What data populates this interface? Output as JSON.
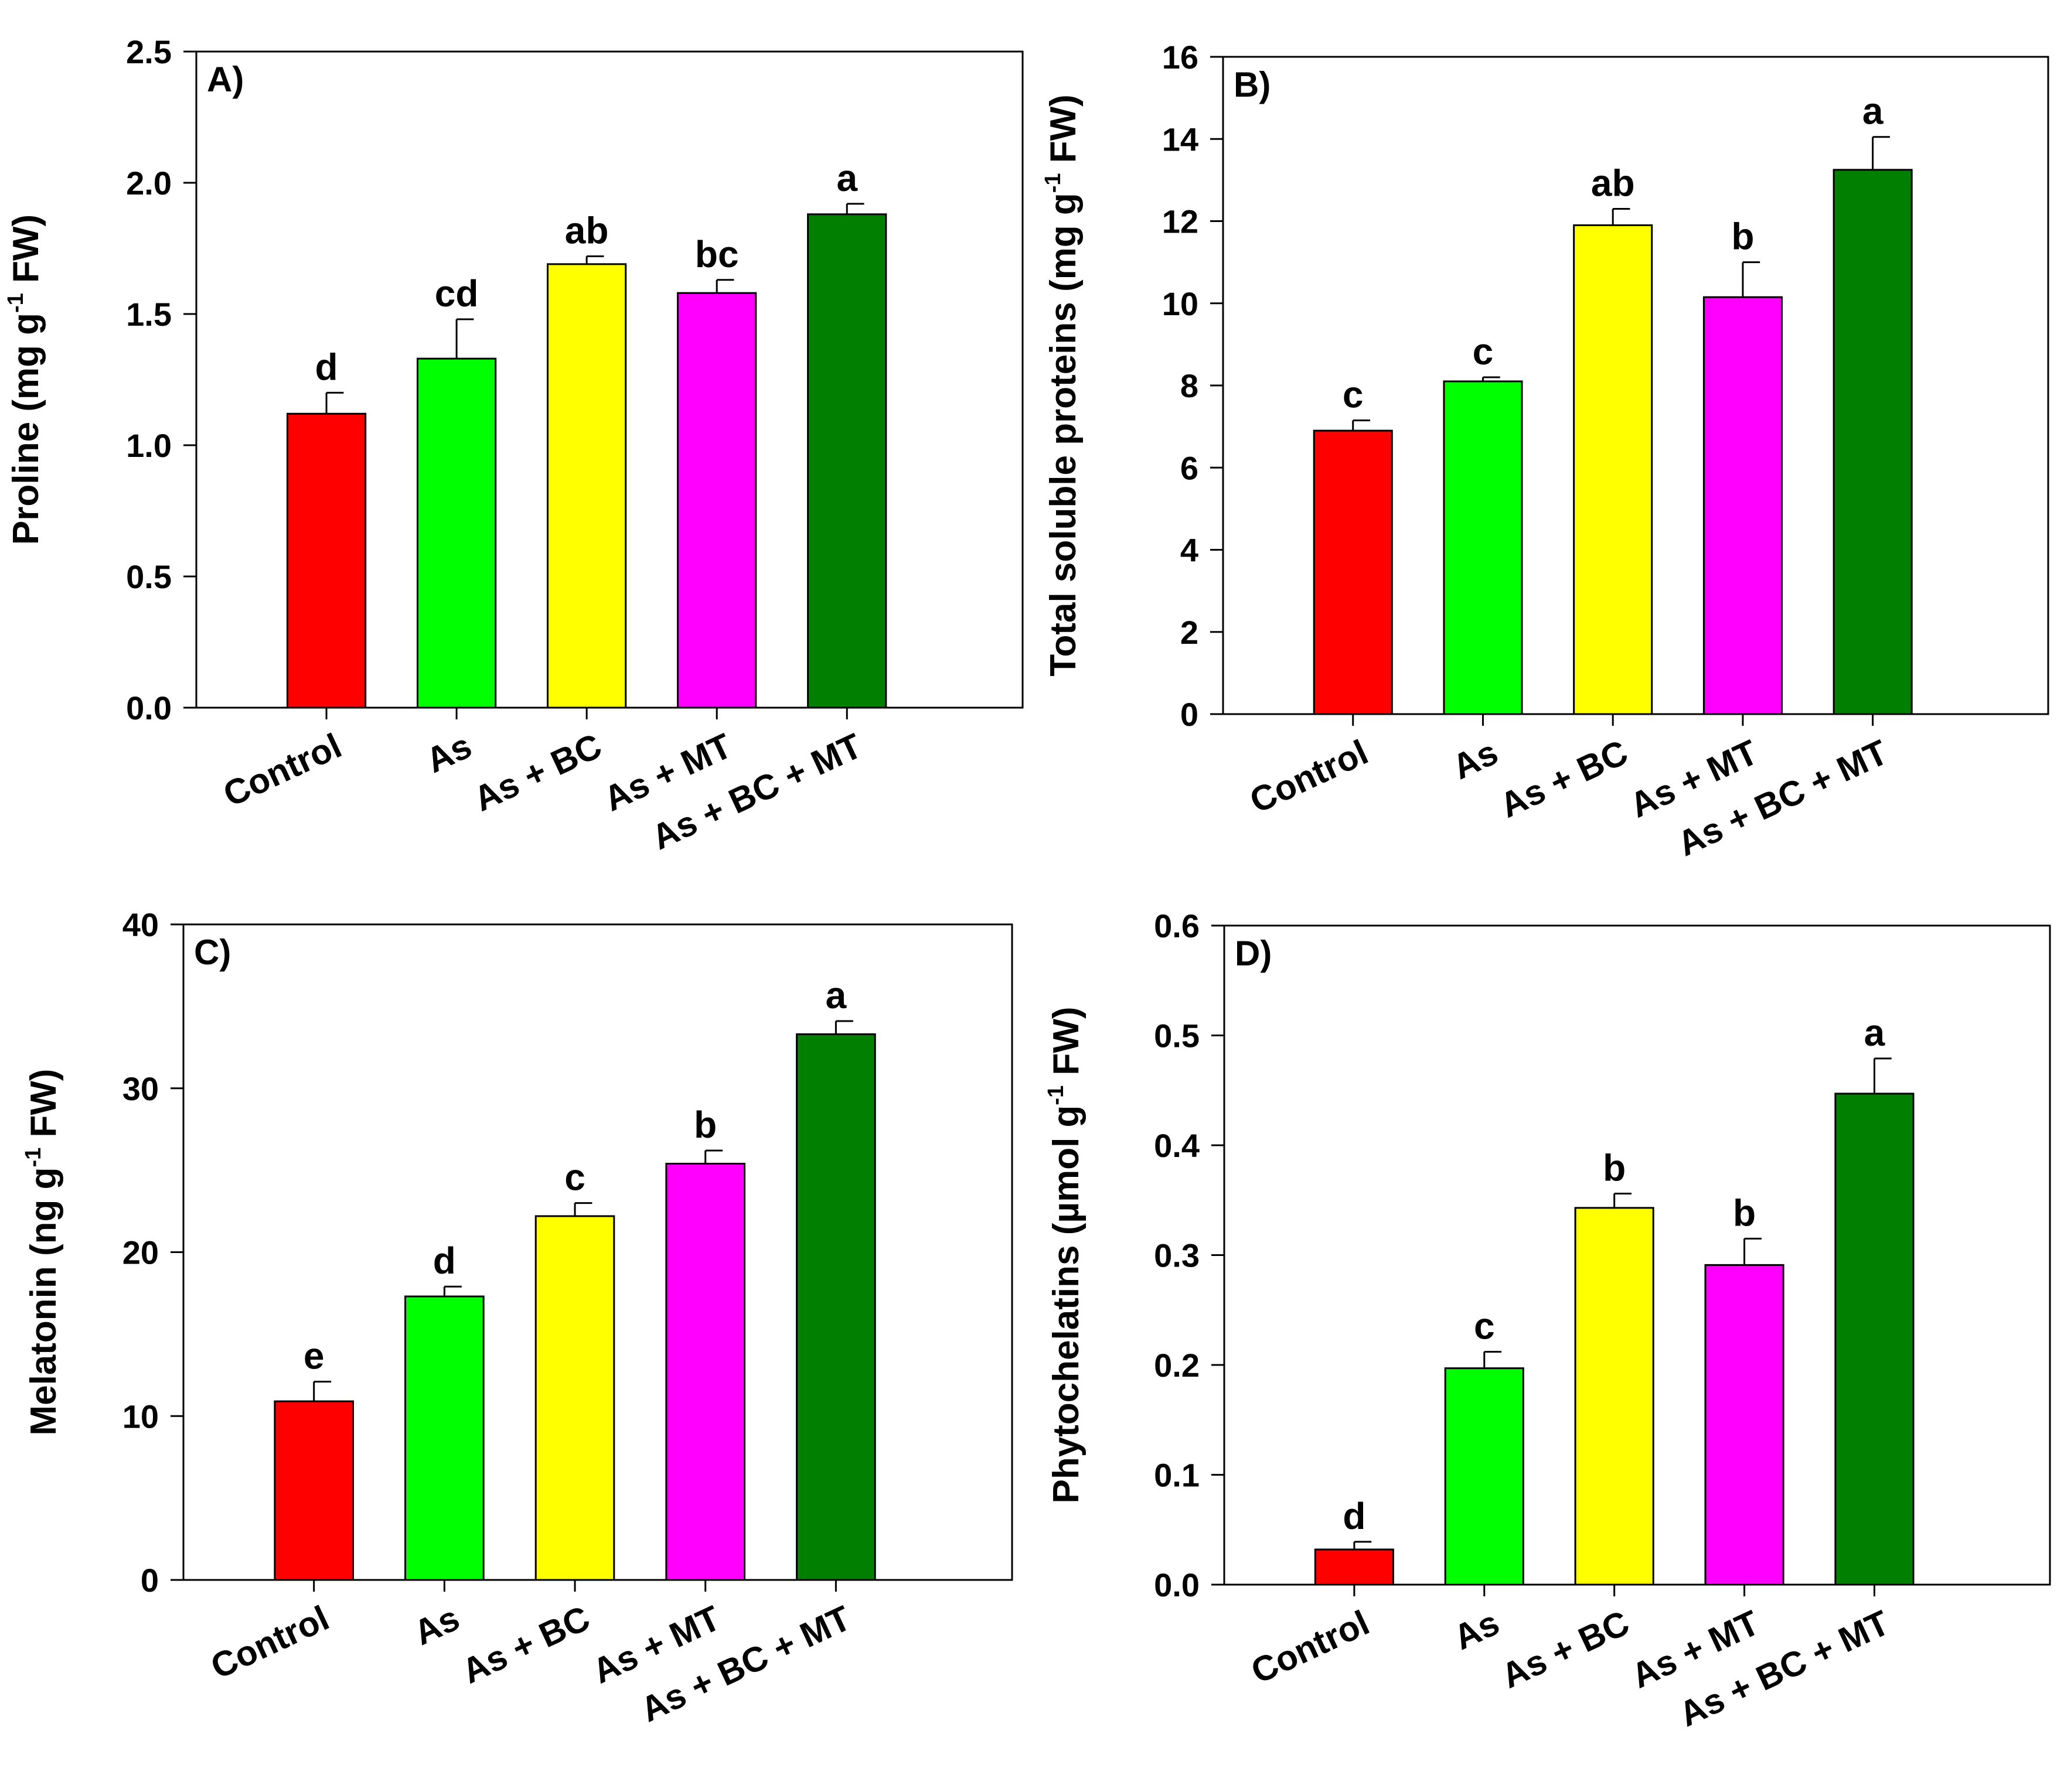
{
  "chart_data": [
    {
      "type": "bar",
      "panel_label": "A)",
      "categories": [
        "Control",
        "As",
        "As + BC",
        "As + MT",
        "As + BC + MT"
      ],
      "values": [
        1.12,
        1.33,
        1.69,
        1.58,
        1.88
      ],
      "errors": [
        0.08,
        0.15,
        0.03,
        0.05,
        0.04
      ],
      "letters": [
        "d",
        "cd",
        "ab",
        "bc",
        "a"
      ],
      "colors": [
        "#ff0000",
        "#00ff00",
        "#ffff00",
        "#ff00ff",
        "#007f00"
      ],
      "ylabel": {
        "main": "Proline (mg g",
        "sup": "-1",
        "end": " FW)"
      },
      "ylim": [
        0,
        2.5
      ],
      "yticks": [
        "0.0",
        "0.5",
        "1.0",
        "1.5",
        "2.0",
        "2.5"
      ],
      "xlabel": ""
    },
    {
      "type": "bar",
      "panel_label": "B)",
      "categories": [
        "Control",
        "As",
        "As + BC",
        "As + MT",
        "As + BC + MT"
      ],
      "values": [
        6.9,
        8.1,
        11.9,
        10.15,
        13.25
      ],
      "errors": [
        0.25,
        0.1,
        0.4,
        0.85,
        0.8
      ],
      "letters": [
        "c",
        "c",
        "ab",
        "b",
        "a"
      ],
      "colors": [
        "#ff0000",
        "#00ff00",
        "#ffff00",
        "#ff00ff",
        "#007f00"
      ],
      "ylabel": {
        "main": "Total soluble proteins (mg g",
        "sup": "-1",
        "end": " FW)"
      },
      "ylim": [
        0,
        16
      ],
      "yticks": [
        "0",
        "2",
        "4",
        "6",
        "8",
        "10",
        "12",
        "14",
        "16"
      ],
      "xlabel": ""
    },
    {
      "type": "bar",
      "panel_label": "C)",
      "categories": [
        "Control",
        "As",
        "As + BC",
        "As + MT",
        "As + BC + MT"
      ],
      "values": [
        10.9,
        17.3,
        22.2,
        25.4,
        33.3
      ],
      "errors": [
        1.2,
        0.6,
        0.8,
        0.8,
        0.8
      ],
      "letters": [
        "e",
        "d",
        "c",
        "b",
        "a"
      ],
      "colors": [
        "#ff0000",
        "#00ff00",
        "#ffff00",
        "#ff00ff",
        "#007f00"
      ],
      "ylabel": {
        "main": "Melatonin (ng g",
        "sup": "-1",
        "end": " FW)"
      },
      "ylim": [
        0,
        40
      ],
      "yticks": [
        "0",
        "10",
        "20",
        "30",
        "40"
      ],
      "xlabel": ""
    },
    {
      "type": "bar",
      "panel_label": "D)",
      "categories": [
        "Control",
        "As",
        "As + BC",
        "As + MT",
        "As + BC + MT"
      ],
      "values": [
        0.032,
        0.197,
        0.343,
        0.291,
        0.447
      ],
      "errors": [
        0.007,
        0.015,
        0.013,
        0.024,
        0.032
      ],
      "letters": [
        "d",
        "c",
        "b",
        "b",
        "a"
      ],
      "colors": [
        "#ff0000",
        "#00ff00",
        "#ffff00",
        "#ff00ff",
        "#007f00"
      ],
      "ylabel": {
        "main": "Phytochelatins (µmol g",
        "sup": "-1",
        "end": " FW)"
      },
      "ylim": [
        0,
        0.6
      ],
      "yticks": [
        "0.0",
        "0.1",
        "0.2",
        "0.3",
        "0.4",
        "0.5",
        "0.6"
      ],
      "xlabel": ""
    }
  ]
}
